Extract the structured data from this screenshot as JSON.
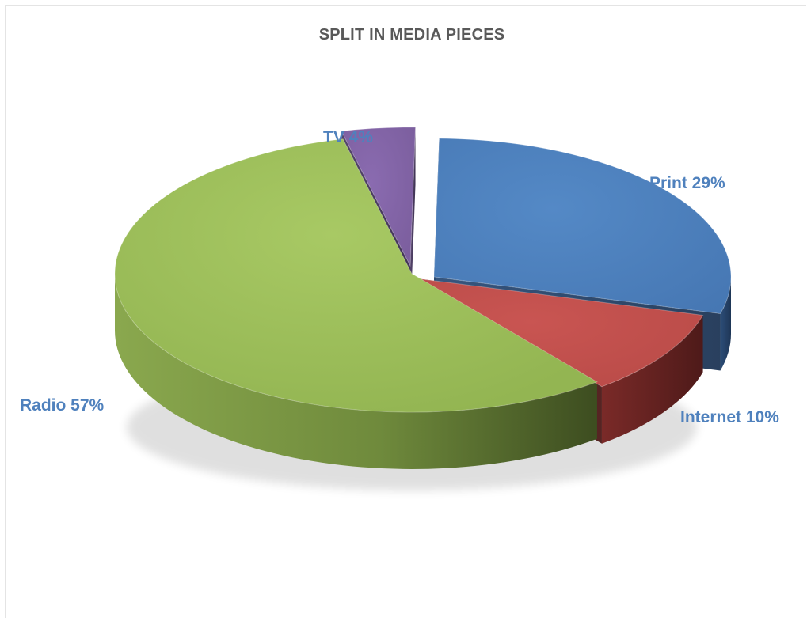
{
  "chart_data": {
    "type": "pie",
    "style": "3d-exploded",
    "title": "SPLIT IN MEDIA PIECES",
    "slices": [
      {
        "label": "Print",
        "value": 29,
        "color": "#4f81bd",
        "data_label": "Print 29%"
      },
      {
        "label": "Internet",
        "value": 10,
        "color": "#c0504d",
        "data_label": "Internet 10%"
      },
      {
        "label": "Radio",
        "value": 57,
        "color": "#9bbb59",
        "data_label": "Radio 57%"
      },
      {
        "label": "TV",
        "value": 4,
        "color": "#8064a2",
        "data_label": "TV 4%"
      }
    ],
    "legend": "none",
    "grid": false
  }
}
